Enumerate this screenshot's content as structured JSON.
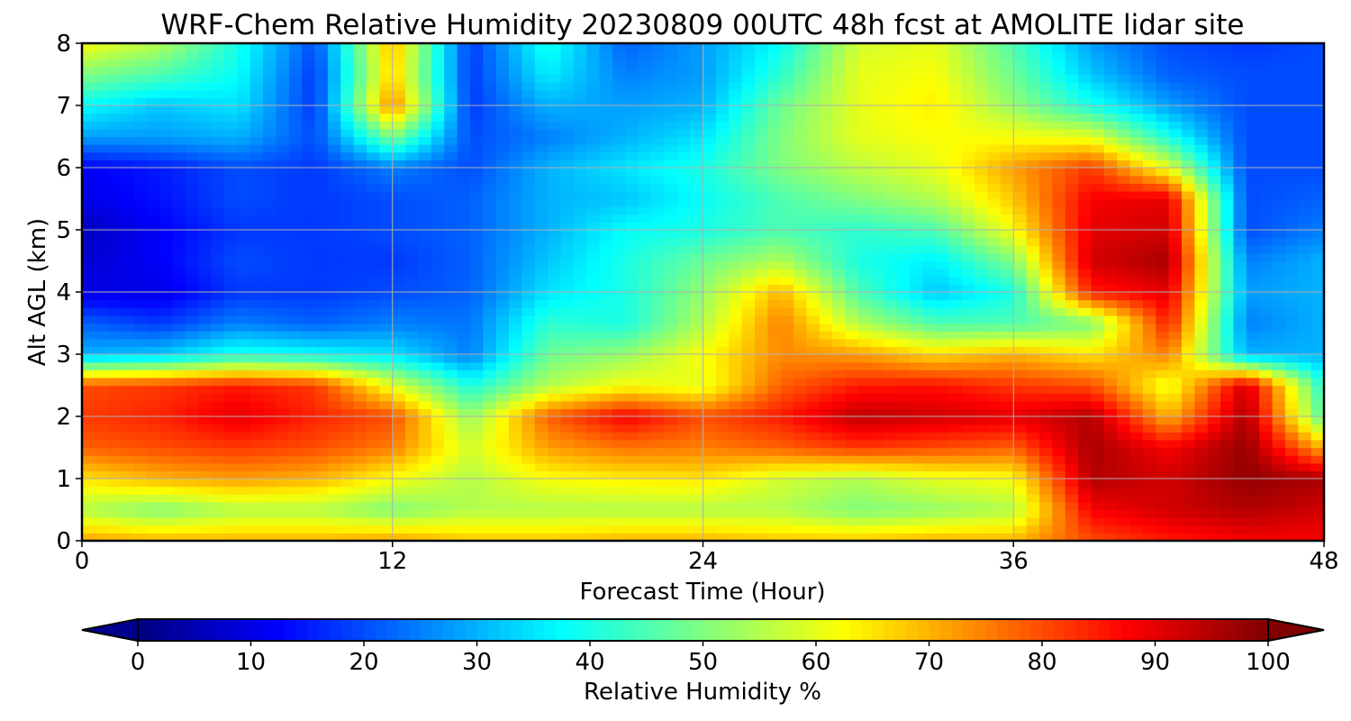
{
  "chart_data": [
    {
      "type": "heatmap",
      "title": "WRF-Chem Relative Humidity 20230809 00UTC 48h fcst at AMOLITE lidar site",
      "xlabel": "Forecast Time (Hour)",
      "ylabel": "Alt AGL (km)",
      "xlim": [
        0,
        48
      ],
      "ylim": [
        0,
        8
      ],
      "xticks": [
        "0",
        "12",
        "24",
        "36",
        "48"
      ],
      "yticks": [
        "0",
        "1",
        "2",
        "3",
        "4",
        "5",
        "6",
        "7",
        "8"
      ],
      "grid": true,
      "colormap": "jet",
      "x_hours": [
        0,
        3,
        6,
        9,
        12,
        15,
        18,
        21,
        24,
        27,
        30,
        33,
        36,
        39,
        42,
        45,
        48
      ],
      "z_km": [
        0,
        0.5,
        1,
        1.5,
        2,
        2.5,
        3,
        3.5,
        4,
        4.5,
        5,
        5.5,
        6,
        6.5,
        7,
        7.5,
        8
      ],
      "values": [
        [
          72,
          70,
          70,
          70,
          72,
          68,
          68,
          70,
          70,
          68,
          68,
          70,
          70,
          80,
          85,
          88,
          88
        ],
        [
          55,
          50,
          55,
          55,
          50,
          55,
          55,
          55,
          55,
          55,
          50,
          52,
          55,
          88,
          92,
          95,
          92
        ],
        [
          65,
          70,
          72,
          70,
          62,
          55,
          62,
          64,
          65,
          58,
          55,
          60,
          62,
          95,
          92,
          98,
          96
        ],
        [
          78,
          80,
          82,
          80,
          75,
          58,
          72,
          76,
          75,
          78,
          82,
          80,
          78,
          96,
          88,
          98,
          70
        ],
        [
          82,
          84,
          90,
          84,
          80,
          52,
          78,
          88,
          80,
          85,
          94,
          92,
          90,
          95,
          70,
          96,
          45
        ],
        [
          80,
          82,
          85,
          82,
          60,
          40,
          55,
          62,
          60,
          78,
          85,
          86,
          82,
          80,
          60,
          92,
          40
        ],
        [
          30,
          32,
          40,
          38,
          35,
          25,
          48,
          52,
          62,
          74,
          72,
          66,
          70,
          65,
          75,
          30,
          30
        ],
        [
          22,
          18,
          25,
          22,
          25,
          24,
          42,
          40,
          55,
          75,
          55,
          45,
          45,
          50,
          85,
          25,
          30
        ],
        [
          10,
          10,
          18,
          18,
          20,
          22,
          35,
          40,
          52,
          70,
          45,
          32,
          40,
          85,
          90,
          28,
          30
        ],
        [
          8,
          12,
          20,
          18,
          18,
          22,
          32,
          40,
          48,
          55,
          40,
          36,
          50,
          92,
          96,
          25,
          30
        ],
        [
          6,
          12,
          18,
          18,
          20,
          22,
          30,
          38,
          40,
          45,
          42,
          45,
          62,
          90,
          92,
          20,
          25
        ],
        [
          10,
          14,
          20,
          18,
          20,
          22,
          30,
          32,
          38,
          45,
          50,
          55,
          68,
          88,
          90,
          20,
          22
        ],
        [
          12,
          15,
          20,
          18,
          25,
          20,
          30,
          35,
          40,
          50,
          56,
          60,
          72,
          82,
          60,
          20,
          20
        ],
        [
          28,
          28,
          30,
          20,
          50,
          20,
          25,
          30,
          35,
          50,
          60,
          62,
          62,
          60,
          40,
          20,
          20
        ],
        [
          38,
          32,
          35,
          18,
          75,
          18,
          30,
          28,
          30,
          48,
          60,
          64,
          52,
          40,
          28,
          20,
          20
        ],
        [
          50,
          45,
          38,
          18,
          68,
          18,
          36,
          25,
          28,
          42,
          60,
          62,
          48,
          32,
          22,
          20,
          20
        ],
        [
          62,
          55,
          40,
          20,
          70,
          18,
          40,
          22,
          28,
          38,
          58,
          60,
          45,
          28,
          20,
          18,
          20
        ]
      ]
    },
    {
      "type": "colorbar",
      "label": "Relative Humidity %",
      "min": 0,
      "max": 100,
      "ticks": [
        "0",
        "10",
        "20",
        "30",
        "40",
        "50",
        "60",
        "70",
        "80",
        "90",
        "100"
      ],
      "extend": "both",
      "colormap": "jet"
    }
  ]
}
